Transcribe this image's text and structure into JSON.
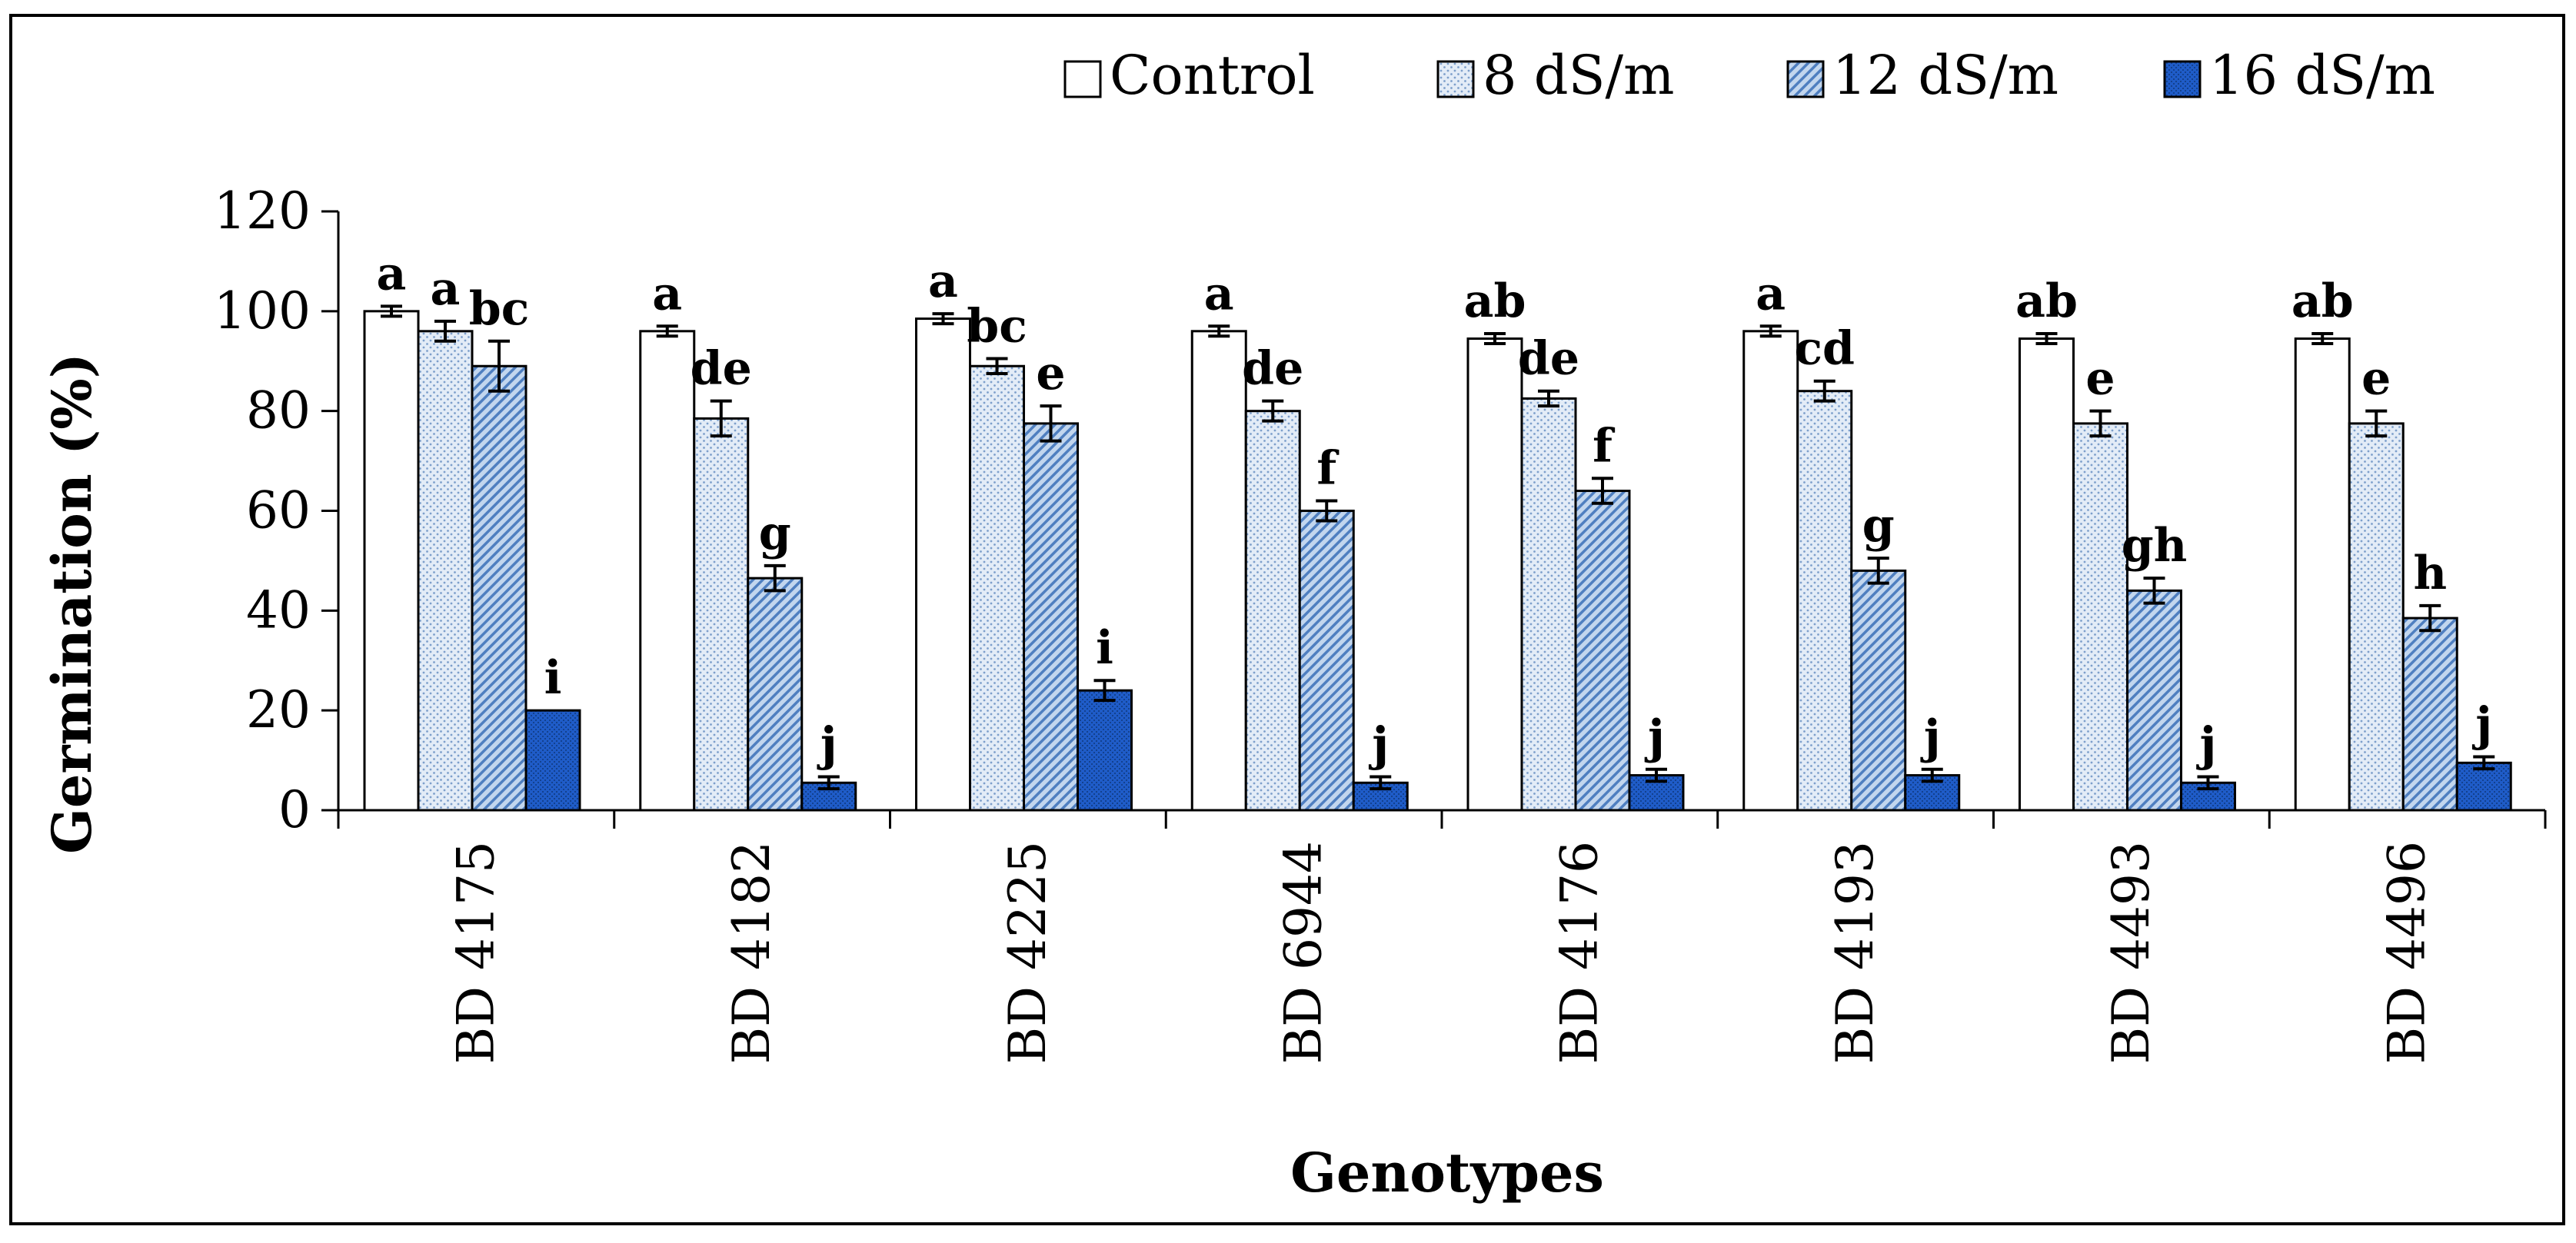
{
  "chart_data": {
    "type": "bar",
    "title": "",
    "xlabel": "Genotypes",
    "ylabel": "Germination (%)",
    "ylim": [
      0,
      120
    ],
    "yticks": [
      0,
      20,
      40,
      60,
      80,
      100,
      120
    ],
    "grid": false,
    "legend_position": "top-right",
    "categories": [
      "BD 4175",
      "BD 4182",
      "BD 4225",
      "BD 6944",
      "BD 4176",
      "BD 4193",
      "BD 4493",
      "BD 4496"
    ],
    "series": [
      {
        "name": "Control",
        "fill": "white",
        "values": [
          100,
          96,
          98.5,
          96,
          94.5,
          96,
          94.5,
          94.5
        ],
        "errors": [
          1,
          1,
          1,
          1,
          1,
          1,
          1,
          1
        ],
        "letters": [
          "a",
          "a",
          "a",
          "a",
          "ab",
          "a",
          "ab",
          "ab"
        ]
      },
      {
        "name": "8 dS/m",
        "fill": "dots",
        "values": [
          96,
          78.5,
          89,
          80,
          82.5,
          84,
          77.5,
          77.5
        ],
        "errors": [
          2,
          3.5,
          1.5,
          2,
          1.5,
          2,
          2.5,
          2.5
        ],
        "letters": [
          "a",
          "de",
          "bc",
          "de",
          "de",
          "cd",
          "e",
          "e"
        ]
      },
      {
        "name": "12 dS/m",
        "fill": "diagonal",
        "values": [
          89,
          46.5,
          77.5,
          60,
          64,
          48,
          44,
          38.5
        ],
        "errors": [
          5,
          2.5,
          3.5,
          2,
          2.5,
          2.5,
          2.5,
          2.5
        ],
        "letters": [
          "bc",
          "g",
          "e",
          "f",
          "f",
          "g",
          "gh",
          "h"
        ]
      },
      {
        "name": "16 dS/m",
        "fill": "dark-blue",
        "values": [
          20,
          5.5,
          24,
          5.5,
          7,
          7,
          5.5,
          9.5
        ],
        "errors": [
          0,
          1.2,
          2,
          1.2,
          1.2,
          1.2,
          1.2,
          1.2
        ],
        "letters": [
          "i",
          "j",
          "i",
          "j",
          "j",
          "j",
          "j",
          "j"
        ]
      }
    ],
    "colors": {
      "control_fill": "#ffffff",
      "light_blue": "#d5e2f2",
      "mid_blue": "#a9c5e5",
      "dark_blue": "#1f5cc8",
      "stroke": "#000000"
    }
  }
}
